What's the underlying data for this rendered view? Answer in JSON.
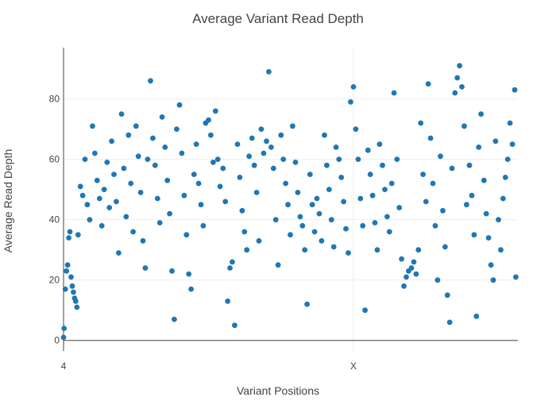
{
  "chart_data": {
    "type": "scatter",
    "title": "Average Variant Read Depth",
    "xlabel": "Variant Positions",
    "ylabel": "Average Read Depth",
    "x_ticks": [
      {
        "label": "4",
        "position": 0
      },
      {
        "label": "X",
        "position": 1000
      }
    ],
    "y_ticks": [
      0,
      20,
      40,
      60,
      80
    ],
    "xlim": [
      0,
      1567
    ],
    "ylim": [
      -3.5,
      97
    ],
    "grid": true,
    "marker_color": "#1f77b4",
    "series": [
      {
        "points": [
          [
            0,
            1
          ],
          [
            2,
            4
          ],
          [
            6,
            17
          ],
          [
            10,
            23
          ],
          [
            14,
            25
          ],
          [
            18,
            34
          ],
          [
            22,
            36
          ],
          [
            26,
            21
          ],
          [
            30,
            18
          ],
          [
            34,
            16
          ],
          [
            38,
            14
          ],
          [
            42,
            13
          ],
          [
            46,
            11
          ],
          [
            50,
            35
          ],
          [
            58,
            51
          ],
          [
            66,
            48
          ],
          [
            74,
            60
          ],
          [
            82,
            45
          ],
          [
            90,
            40
          ],
          [
            100,
            71
          ],
          [
            108,
            62
          ],
          [
            116,
            53
          ],
          [
            124,
            47
          ],
          [
            132,
            38
          ],
          [
            140,
            50
          ],
          [
            150,
            59
          ],
          [
            158,
            44
          ],
          [
            166,
            66
          ],
          [
            174,
            55
          ],
          [
            182,
            46
          ],
          [
            190,
            29
          ],
          [
            200,
            75
          ],
          [
            208,
            57
          ],
          [
            216,
            41
          ],
          [
            224,
            68
          ],
          [
            232,
            52
          ],
          [
            240,
            36
          ],
          [
            250,
            71
          ],
          [
            258,
            61
          ],
          [
            266,
            49
          ],
          [
            274,
            33
          ],
          [
            282,
            24
          ],
          [
            290,
            60
          ],
          [
            300,
            86
          ],
          [
            308,
            67
          ],
          [
            316,
            58
          ],
          [
            324,
            47
          ],
          [
            332,
            39
          ],
          [
            340,
            74
          ],
          [
            350,
            64
          ],
          [
            358,
            53
          ],
          [
            366,
            42
          ],
          [
            374,
            23
          ],
          [
            382,
            7
          ],
          [
            390,
            70
          ],
          [
            400,
            78
          ],
          [
            408,
            62
          ],
          [
            416,
            48
          ],
          [
            424,
            35
          ],
          [
            432,
            22
          ],
          [
            440,
            17
          ],
          [
            450,
            55
          ],
          [
            458,
            65
          ],
          [
            466,
            52
          ],
          [
            474,
            45
          ],
          [
            482,
            38
          ],
          [
            490,
            72
          ],
          [
            500,
            73
          ],
          [
            508,
            68
          ],
          [
            516,
            59
          ],
          [
            524,
            76
          ],
          [
            532,
            60
          ],
          [
            540,
            51
          ],
          [
            550,
            57
          ],
          [
            558,
            46
          ],
          [
            566,
            13
          ],
          [
            574,
            24
          ],
          [
            582,
            26
          ],
          [
            590,
            5
          ],
          [
            600,
            65
          ],
          [
            608,
            54
          ],
          [
            616,
            43
          ],
          [
            624,
            36
          ],
          [
            632,
            30
          ],
          [
            640,
            61
          ],
          [
            650,
            67
          ],
          [
            658,
            58
          ],
          [
            666,
            49
          ],
          [
            674,
            33
          ],
          [
            682,
            70
          ],
          [
            690,
            62
          ],
          [
            700,
            66
          ],
          [
            708,
            89
          ],
          [
            716,
            64
          ],
          [
            724,
            57
          ],
          [
            732,
            40
          ],
          [
            740,
            25
          ],
          [
            750,
            68
          ],
          [
            758,
            60
          ],
          [
            766,
            52
          ],
          [
            774,
            45
          ],
          [
            782,
            35
          ],
          [
            790,
            71
          ],
          [
            800,
            59
          ],
          [
            808,
            49
          ],
          [
            816,
            41
          ],
          [
            824,
            38
          ],
          [
            832,
            30
          ],
          [
            840,
            12
          ],
          [
            850,
            55
          ],
          [
            858,
            45
          ],
          [
            866,
            36
          ],
          [
            874,
            47
          ],
          [
            882,
            42
          ],
          [
            890,
            33
          ],
          [
            900,
            68
          ],
          [
            908,
            58
          ],
          [
            916,
            50
          ],
          [
            924,
            40
          ],
          [
            932,
            31
          ],
          [
            940,
            64
          ],
          [
            950,
            60
          ],
          [
            958,
            54
          ],
          [
            966,
            46
          ],
          [
            974,
            37
          ],
          [
            982,
            29
          ],
          [
            990,
            79
          ],
          [
            1000,
            84
          ],
          [
            1008,
            70
          ],
          [
            1016,
            60
          ],
          [
            1024,
            47
          ],
          [
            1032,
            38
          ],
          [
            1040,
            10
          ],
          [
            1050,
            63
          ],
          [
            1058,
            55
          ],
          [
            1066,
            48
          ],
          [
            1074,
            39
          ],
          [
            1082,
            30
          ],
          [
            1090,
            65
          ],
          [
            1100,
            58
          ],
          [
            1108,
            50
          ],
          [
            1116,
            41
          ],
          [
            1124,
            36
          ],
          [
            1132,
            52
          ],
          [
            1140,
            82
          ],
          [
            1150,
            60
          ],
          [
            1158,
            44
          ],
          [
            1166,
            27
          ],
          [
            1174,
            18
          ],
          [
            1182,
            21
          ],
          [
            1190,
            23
          ],
          [
            1200,
            24
          ],
          [
            1208,
            26
          ],
          [
            1216,
            22
          ],
          [
            1224,
            30
          ],
          [
            1232,
            72
          ],
          [
            1240,
            55
          ],
          [
            1250,
            46
          ],
          [
            1258,
            85
          ],
          [
            1266,
            67
          ],
          [
            1274,
            52
          ],
          [
            1282,
            38
          ],
          [
            1290,
            20
          ],
          [
            1300,
            61
          ],
          [
            1308,
            43
          ],
          [
            1316,
            31
          ],
          [
            1324,
            15
          ],
          [
            1332,
            6
          ],
          [
            1340,
            57
          ],
          [
            1350,
            82
          ],
          [
            1358,
            87
          ],
          [
            1366,
            91
          ],
          [
            1374,
            84
          ],
          [
            1382,
            71
          ],
          [
            1390,
            45
          ],
          [
            1400,
            58
          ],
          [
            1408,
            48
          ],
          [
            1416,
            35
          ],
          [
            1424,
            8
          ],
          [
            1432,
            64
          ],
          [
            1440,
            75
          ],
          [
            1450,
            53
          ],
          [
            1458,
            42
          ],
          [
            1466,
            34
          ],
          [
            1474,
            25
          ],
          [
            1482,
            20
          ],
          [
            1490,
            66
          ],
          [
            1500,
            40
          ],
          [
            1508,
            30
          ],
          [
            1516,
            47
          ],
          [
            1524,
            54
          ],
          [
            1532,
            60
          ],
          [
            1540,
            72
          ],
          [
            1548,
            65
          ],
          [
            1556,
            83
          ],
          [
            1560,
            21
          ]
        ]
      }
    ]
  }
}
